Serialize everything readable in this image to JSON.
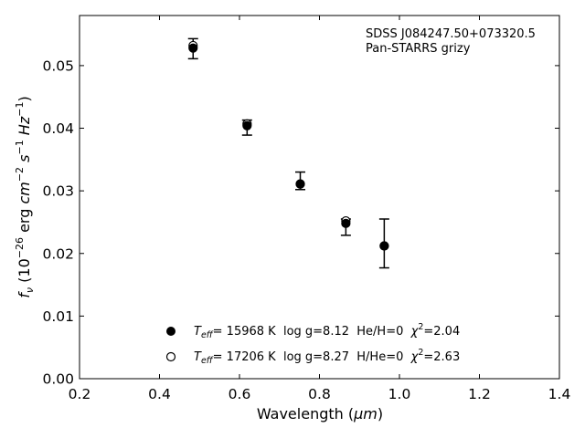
{
  "chart_data": {
    "type": "scatter",
    "xlabel_text": "Wavelength (",
    "xlabel_unit": "μm",
    "xlabel_close": ")",
    "ylabel": {
      "f": "f",
      "nu": "ν",
      "open": " (10",
      "exp": "−26",
      "erg": " erg ",
      "cm": "cm",
      "cmexp": "−2",
      "s": "s",
      "sexp": "−1",
      "hz": "Hz",
      "hzexp": "−1",
      "close": ")"
    },
    "xlim": [
      0.2,
      1.4
    ],
    "ylim": [
      0.0,
      0.058
    ],
    "xticks": [
      0.2,
      0.4,
      0.6,
      0.8,
      1.0,
      1.2,
      1.4
    ],
    "xtick_labels": [
      "0.2",
      "0.4",
      "0.6",
      "0.8",
      "1.0",
      "1.2",
      "1.4"
    ],
    "yticks": [
      0.0,
      0.01,
      0.02,
      0.03,
      0.04,
      0.05
    ],
    "ytick_labels": [
      "0.00",
      "0.01",
      "0.02",
      "0.03",
      "0.04",
      "0.05"
    ],
    "annotation": [
      "SDSS J084247.50+073320.5",
      "Pan-STARRS grizy"
    ],
    "observed": [
      {
        "x": 0.484,
        "y": 0.0527,
        "yerr": 0.0016
      },
      {
        "x": 0.619,
        "y": 0.0401,
        "yerr": 0.0012
      },
      {
        "x": 0.752,
        "y": 0.0316,
        "yerr": 0.0014
      },
      {
        "x": 0.866,
        "y": 0.0242,
        "yerr": 0.0013
      },
      {
        "x": 0.962,
        "y": 0.0216,
        "yerr": 0.0039
      }
    ],
    "series": [
      {
        "marker": "filled",
        "values": [
          {
            "x": 0.484,
            "y": 0.0528
          },
          {
            "x": 0.619,
            "y": 0.0404
          },
          {
            "x": 0.752,
            "y": 0.0311
          },
          {
            "x": 0.866,
            "y": 0.0248
          },
          {
            "x": 0.962,
            "y": 0.0212
          }
        ]
      },
      {
        "marker": "open",
        "values": [
          {
            "x": 0.484,
            "y": 0.0532
          },
          {
            "x": 0.619,
            "y": 0.0407
          },
          {
            "x": 0.752,
            "y": 0.0311
          },
          {
            "x": 0.866,
            "y": 0.0252
          },
          {
            "x": 0.962,
            "y": 0.0212
          }
        ]
      }
    ],
    "legend": {
      "placement": "bottom-center",
      "entries": [
        {
          "marker": "filled",
          "teff_prefix": "T",
          "teff_sub": "eff",
          "text": "= 15968 K  log g=8.12  He/H=0  ",
          "chi": "χ",
          "chi_exp": "2",
          "chi_val": "=2.04"
        },
        {
          "marker": "open",
          "teff_prefix": "T",
          "teff_sub": "eff",
          "text": "= 17206 K  log g=8.27  H/He=0  ",
          "chi": "χ",
          "chi_exp": "2",
          "chi_val": "=2.63"
        }
      ]
    },
    "grid": false
  }
}
